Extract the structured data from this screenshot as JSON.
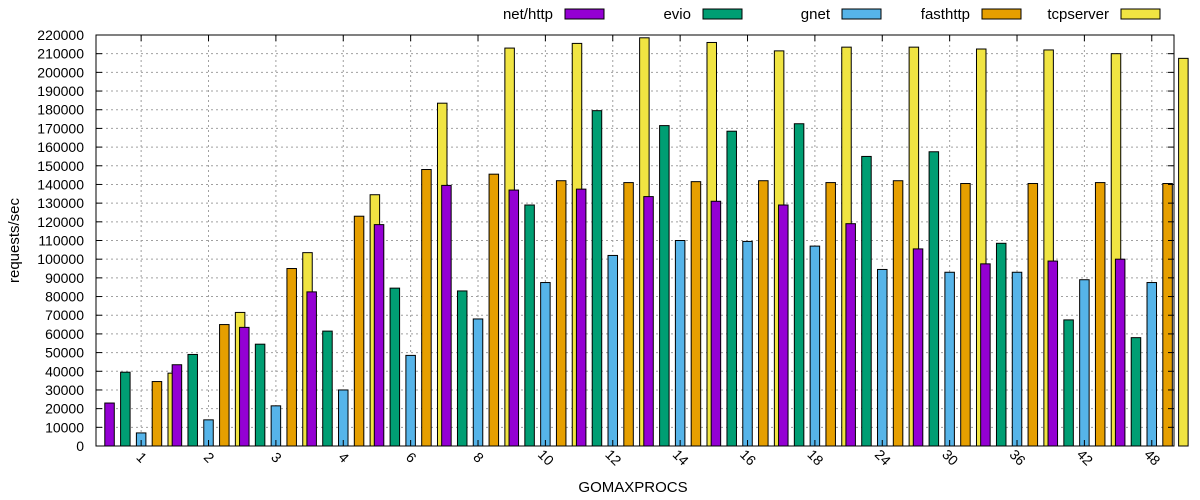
{
  "chart_data": {
    "type": "bar",
    "title": "",
    "xlabel": "GOMAXPROCS",
    "ylabel": "requests/sec",
    "ylim": [
      0,
      220000
    ],
    "ytick_step": 10000,
    "grid": true,
    "legend_position": "top",
    "categories": [
      "1",
      "2",
      "3",
      "4",
      "6",
      "8",
      "10",
      "12",
      "14",
      "16",
      "18",
      "24",
      "30",
      "36",
      "42",
      "48"
    ],
    "series": [
      {
        "name": "net/http",
        "color": "#9400d3",
        "values": [
          23000,
          43500,
          63500,
          82500,
          118500,
          139500,
          137000,
          137500,
          133500,
          131000,
          129000,
          119000,
          105500,
          97500,
          99000,
          100000
        ]
      },
      {
        "name": "evio",
        "color": "#009e73",
        "values": [
          39500,
          49000,
          54500,
          61500,
          84500,
          83000,
          129000,
          179500,
          171500,
          168500,
          172500,
          155000,
          157500,
          108500,
          67500,
          58000
        ]
      },
      {
        "name": "gnet",
        "color": "#56b4e9",
        "values": [
          7000,
          14000,
          21500,
          30000,
          48500,
          68000,
          87500,
          102000,
          110000,
          109500,
          107000,
          94500,
          93000,
          93000,
          89000,
          87500
        ]
      },
      {
        "name": "fasthttp",
        "color": "#e69f00",
        "values": [
          34500,
          65000,
          95000,
          123000,
          148000,
          145500,
          142000,
          141000,
          141500,
          142000,
          141000,
          142000,
          140500,
          140500,
          141000,
          140500
        ]
      },
      {
        "name": "tcpserver",
        "color": "#f0e442",
        "values": [
          39000,
          71500,
          103500,
          134500,
          183500,
          213000,
          215500,
          218500,
          216000,
          211500,
          213500,
          213500,
          212500,
          212000,
          210000,
          207500
        ]
      }
    ]
  }
}
